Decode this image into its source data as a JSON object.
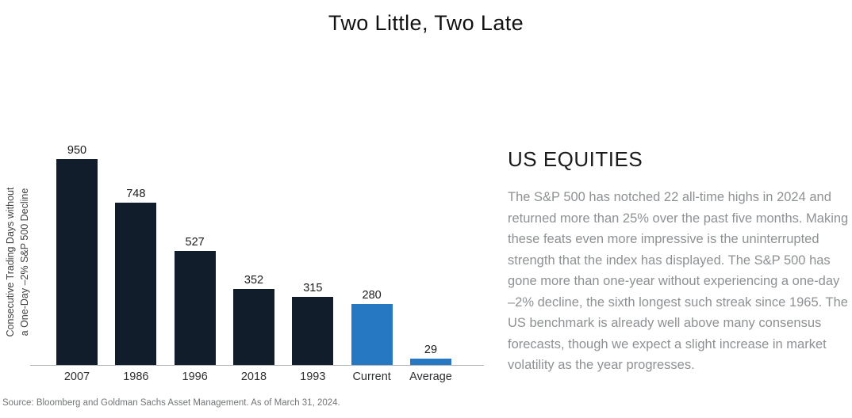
{
  "title": "Two Little, Two Late",
  "chart_data": {
    "type": "bar",
    "categories": [
      "2007",
      "1986",
      "1996",
      "2018",
      "1993",
      "Current",
      "Average"
    ],
    "values": [
      950,
      748,
      527,
      352,
      315,
      280,
      29
    ],
    "title": "Two Little, Two Late",
    "xlabel": "",
    "ylabel": "Consecutive Trading Days without a One-Day –2% S&P 500 Decline",
    "ylabel_line1": "Consecutive Trading Days without",
    "ylabel_line2": "a One-Day –2% S&P 500 Decline",
    "ylim": [
      0,
      950
    ],
    "grid": false,
    "legend": "none",
    "value_labels_shown": true,
    "highlighted_categories": [
      "Current",
      "Average"
    ],
    "colors": {
      "bar_default": "#121d2b",
      "bar_highlight": "#2778c2",
      "axis_line": "#b3b5b7"
    }
  },
  "right_panel": {
    "heading": "US EQUITIES",
    "body": "The S&P 500 has notched 22 all-time highs in 2024 and returned more than 25% over the past five months. Making these feats even more impressive is the uninterrupted strength that the index has displayed. The S&P 500 has gone more than one-year without experiencing a one-day –2% decline, the sixth longest such streak since 1965. The US benchmark is already well above many consensus forecasts, though we expect a slight increase in market volatility as the year progresses."
  },
  "footer": {
    "source": "Source: Bloomberg and Goldman Sachs Asset Management. As of March 31, 2024."
  }
}
